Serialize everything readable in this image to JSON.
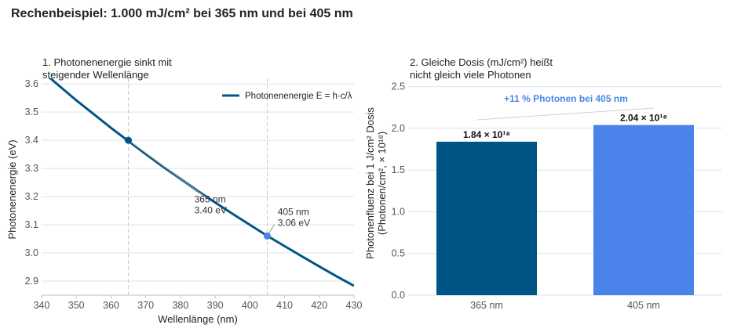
{
  "figure": {
    "title": "Rechenbeispiel: 1.000 mJ/cm² bei 365 nm und bei 405 nm"
  },
  "colors": {
    "dark_blue": "#005587",
    "light_blue": "#4a84ea",
    "grid": "#dde3ea",
    "vline": "#b9cfe0"
  },
  "chart_data": [
    {
      "type": "line",
      "title_lines": [
        "1. Photonenenergie sinkt mit",
        "steigender Wellenlänge"
      ],
      "xlabel": "Wellenlänge (nm)",
      "ylabel": "Photonenenergie (eV)",
      "xlim": [
        340,
        430
      ],
      "ylim": [
        2.85,
        3.62
      ],
      "xticks": [
        340,
        350,
        360,
        370,
        380,
        390,
        400,
        410,
        420,
        430
      ],
      "yticks": [
        2.9,
        3.0,
        3.1,
        3.2,
        3.3,
        3.4,
        3.5,
        3.6
      ],
      "grid": true,
      "legend_position": "top-right",
      "series": [
        {
          "name": "Photonenenergie E = h·c/λ",
          "color": "#005587",
          "x": [
            340,
            345,
            350,
            355,
            360,
            365,
            370,
            375,
            380,
            385,
            390,
            395,
            400,
            405,
            410,
            415,
            420,
            425,
            430
          ],
          "y": [
            3.647,
            3.594,
            3.542,
            3.493,
            3.444,
            3.397,
            3.351,
            3.306,
            3.263,
            3.22,
            3.179,
            3.139,
            3.1,
            3.061,
            3.024,
            2.988,
            2.952,
            2.917,
            2.883
          ]
        }
      ],
      "reference_lines_x": [
        365,
        405
      ],
      "markers": [
        {
          "x": 365,
          "y": 3.4,
          "color": "#005587",
          "label_line1": "365 nm",
          "label_line2": "3.40 eV"
        },
        {
          "x": 405,
          "y": 3.06,
          "color": "#4a84ea",
          "label_line1": "405 nm",
          "label_line2": "3.06 eV"
        }
      ]
    },
    {
      "type": "bar",
      "title_lines": [
        "2. Gleiche Dosis (mJ/cm²) heißt",
        "nicht gleich viele Photonen"
      ],
      "xlabel": "",
      "ylabel_lines": [
        "Photonenfluenz bei 1 J/cm² Dosis",
        "(Photonen/cm², × 10¹⁸)"
      ],
      "categories": [
        "365 nm",
        "405 nm"
      ],
      "values": [
        1.84,
        2.04
      ],
      "value_labels": [
        "1.84 × 10¹⁸",
        "2.04 × 10¹⁸"
      ],
      "colors": [
        "#005587",
        "#4a84ea"
      ],
      "ylim": [
        0,
        2.6
      ],
      "yticks": [
        0.0,
        0.5,
        1.0,
        1.5,
        2.0,
        2.5
      ],
      "grid": true,
      "callout": "+11 % Photonen bei 405 nm"
    }
  ]
}
